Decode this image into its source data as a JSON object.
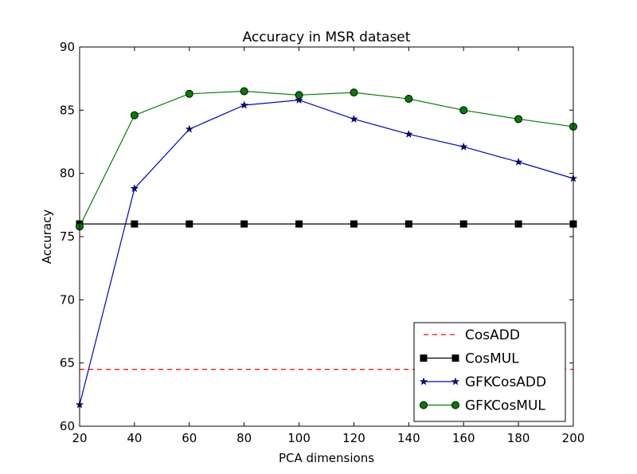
{
  "chart_data": {
    "type": "line",
    "title": "Accuracy in MSR dataset",
    "xlabel": "PCA dimensions",
    "ylabel": "Accuracy",
    "xlim": [
      20,
      200
    ],
    "ylim": [
      60,
      90
    ],
    "xticks": [
      20,
      40,
      60,
      80,
      100,
      120,
      140,
      160,
      180,
      200
    ],
    "yticks": [
      60,
      65,
      70,
      75,
      80,
      85,
      90
    ],
    "grid": false,
    "legend_position": "lower right",
    "x": [
      20,
      40,
      60,
      80,
      100,
      120,
      140,
      160,
      180,
      200
    ],
    "series": [
      {
        "name": "CosADD",
        "color": "#ff0000",
        "style": "dashed",
        "marker": "none",
        "values": [
          64.5,
          64.5,
          64.5,
          64.5,
          64.5,
          64.5,
          64.5,
          64.5,
          64.5,
          64.5
        ]
      },
      {
        "name": "CosMUL",
        "color": "#000000",
        "style": "solid",
        "marker": "square",
        "values": [
          76.0,
          76.0,
          76.0,
          76.0,
          76.0,
          76.0,
          76.0,
          76.0,
          76.0,
          76.0
        ]
      },
      {
        "name": "GFKCosADD",
        "color": "#0000cc",
        "style": "solid",
        "marker": "star",
        "values": [
          61.7,
          78.8,
          83.5,
          85.4,
          85.8,
          84.3,
          83.1,
          82.1,
          80.9,
          79.6
        ]
      },
      {
        "name": "GFKCosMUL",
        "color": "#008000",
        "style": "solid",
        "marker": "circle",
        "values": [
          75.8,
          84.6,
          86.3,
          86.5,
          86.2,
          86.4,
          85.9,
          85.0,
          84.3,
          83.7
        ]
      }
    ]
  }
}
